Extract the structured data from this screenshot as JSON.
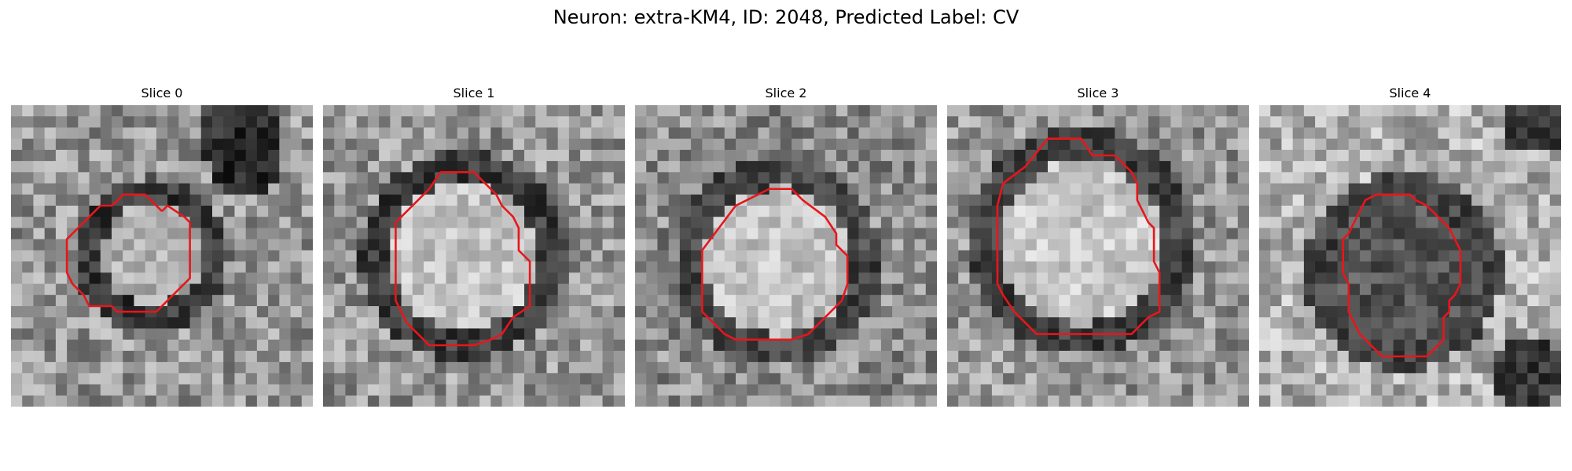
{
  "figure": {
    "title": "Neuron: extra-KM4, ID: 2048, Predicted Label: CV"
  },
  "colors": {
    "contour": "#e8161b",
    "background": "#ffffff"
  },
  "slices": [
    {
      "title": "Slice 0",
      "contour": [
        [
          13.5,
          9.5
        ],
        [
          12,
          8
        ],
        [
          10,
          8
        ],
        [
          9.5,
          8.6
        ],
        [
          9,
          9
        ],
        [
          8,
          9
        ],
        [
          7,
          10
        ],
        [
          6,
          11
        ],
        [
          5,
          12
        ],
        [
          5,
          15
        ],
        [
          5.5,
          16
        ],
        [
          6.5,
          17
        ],
        [
          7,
          18
        ],
        [
          9,
          18
        ],
        [
          9.5,
          18.5
        ],
        [
          12,
          18.5
        ],
        [
          13,
          18.5
        ],
        [
          15,
          16.5
        ],
        [
          16,
          15.5
        ],
        [
          16,
          10.5
        ],
        [
          15.5,
          10
        ],
        [
          14,
          9
        ],
        [
          13.5,
          9.5
        ]
      ]
    },
    {
      "title": "Slice 1",
      "contour": [
        [
          10.5,
          6
        ],
        [
          13.5,
          6
        ],
        [
          14.5,
          7
        ],
        [
          15.5,
          8
        ],
        [
          16,
          9
        ],
        [
          17,
          10
        ],
        [
          17.5,
          11
        ],
        [
          17.5,
          13
        ],
        [
          18,
          13.5
        ],
        [
          18.5,
          14
        ],
        [
          18.5,
          18
        ],
        [
          17,
          19
        ],
        [
          16,
          20.5
        ],
        [
          15,
          21
        ],
        [
          13.5,
          21.5
        ],
        [
          9.5,
          21.5
        ],
        [
          8.5,
          20.5
        ],
        [
          7.5,
          19.5
        ],
        [
          7,
          18.5
        ],
        [
          6.5,
          17.5
        ],
        [
          6.5,
          10.5
        ],
        [
          7.5,
          9.5
        ],
        [
          8.5,
          8.5
        ],
        [
          9.5,
          7.5
        ],
        [
          10.5,
          6
        ]
      ]
    },
    {
      "title": "Slice 2",
      "contour": [
        [
          7.5,
          11
        ],
        [
          9,
          9
        ],
        [
          10,
          8.5
        ],
        [
          12,
          7.5
        ],
        [
          14,
          7.5
        ],
        [
          15,
          8.5
        ],
        [
          17,
          10
        ],
        [
          18,
          11.5
        ],
        [
          18,
          12.5
        ],
        [
          19,
          13.5
        ],
        [
          19,
          16
        ],
        [
          18.5,
          17.5
        ],
        [
          17.5,
          18.5
        ],
        [
          16.5,
          19.5
        ],
        [
          15.5,
          20.5
        ],
        [
          14,
          21
        ],
        [
          12,
          21
        ],
        [
          9,
          21
        ],
        [
          8,
          20.5
        ],
        [
          7,
          19.5
        ],
        [
          6,
          18.5
        ],
        [
          6,
          13
        ],
        [
          7.5,
          11
        ]
      ]
    },
    {
      "title": "Slice 3",
      "contour": [
        [
          7,
          5.5
        ],
        [
          9,
          3
        ],
        [
          12,
          3
        ],
        [
          13,
          4.5
        ],
        [
          15,
          4.5
        ],
        [
          16,
          5.5
        ],
        [
          16.5,
          6
        ],
        [
          17,
          7
        ],
        [
          17,
          8.5
        ],
        [
          17.5,
          9.5
        ],
        [
          18,
          10.5
        ],
        [
          18.5,
          11
        ],
        [
          18.5,
          14
        ],
        [
          19,
          15
        ],
        [
          19,
          18.5
        ],
        [
          18,
          19
        ],
        [
          17,
          20
        ],
        [
          16.5,
          20.5
        ],
        [
          14.5,
          20.5
        ],
        [
          13,
          20.5
        ],
        [
          8,
          20.5
        ],
        [
          7,
          19.5
        ],
        [
          6,
          18.5
        ],
        [
          5,
          17
        ],
        [
          4.5,
          16
        ],
        [
          4.5,
          9
        ],
        [
          5,
          7
        ],
        [
          7,
          5.5
        ]
      ]
    },
    {
      "title": "Slice 4",
      "contour": [
        [
          10.5,
          8
        ],
        [
          13.5,
          8
        ],
        [
          14,
          8.5
        ],
        [
          15,
          9
        ],
        [
          15.5,
          9.5
        ],
        [
          16,
          10
        ],
        [
          16.5,
          10.5
        ],
        [
          17,
          11
        ],
        [
          17.5,
          12
        ],
        [
          18,
          13
        ],
        [
          18,
          16
        ],
        [
          17.5,
          17
        ],
        [
          17,
          17.5
        ],
        [
          17,
          18.5
        ],
        [
          16.5,
          19
        ],
        [
          16.5,
          21
        ],
        [
          16,
          21.5
        ],
        [
          15.5,
          22
        ],
        [
          15,
          22.5
        ],
        [
          11,
          22.5
        ],
        [
          10,
          21.5
        ],
        [
          9,
          20.5
        ],
        [
          8.5,
          19.5
        ],
        [
          8,
          18.5
        ],
        [
          8,
          17
        ],
        [
          8,
          16
        ],
        [
          7.5,
          15
        ],
        [
          7.5,
          12
        ],
        [
          8,
          11.5
        ],
        [
          8.5,
          10.5
        ],
        [
          9,
          9.5
        ],
        [
          9.5,
          8.5
        ],
        [
          10.5,
          8
        ]
      ]
    }
  ]
}
